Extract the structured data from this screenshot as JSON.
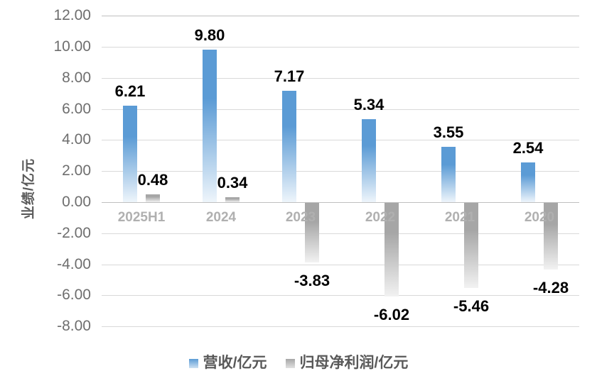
{
  "chart_data": {
    "type": "bar",
    "categories": [
      "2025H1",
      "2024",
      "2023",
      "2022",
      "2021",
      "2020"
    ],
    "series": [
      {
        "name": "营收/亿元",
        "values": [
          6.21,
          9.8,
          7.17,
          5.34,
          3.55,
          2.54
        ],
        "labels": [
          "6.21",
          "9.80",
          "7.17",
          "5.34",
          "3.55",
          "2.54"
        ],
        "color": "#5b9bd5",
        "fade": "#eef5fb"
      },
      {
        "name": "归母净利润/亿元",
        "values": [
          0.48,
          0.34,
          -3.83,
          -6.02,
          -5.46,
          -4.28
        ],
        "labels": [
          "0.48",
          "0.34",
          "-3.83",
          "-6.02",
          "-5.46",
          "-4.28"
        ],
        "color": "#a6a6a6",
        "fade": "#f2f2f2"
      }
    ],
    "title": "",
    "xlabel": "",
    "ylabel": "业绩/亿元",
    "ylim": [
      -8,
      12
    ],
    "ytick_step": 2,
    "yticks": [
      "12.00",
      "10.00",
      "8.00",
      "6.00",
      "4.00",
      "2.00",
      "0.00",
      "-2.00",
      "-4.00",
      "-6.00",
      "-8.00"
    ],
    "grid": true,
    "legend_position": "bottom"
  },
  "colors": {
    "gridline": "#d9d9d9",
    "axis_line": "#bfbfbf",
    "tick_label": "#6e6e6e",
    "category_label": "#b0b0b0",
    "value_label": "#000000",
    "legend_text": "#595959",
    "bar_blue": "#5b9bd5",
    "bar_gray": "#a6a6a6"
  }
}
